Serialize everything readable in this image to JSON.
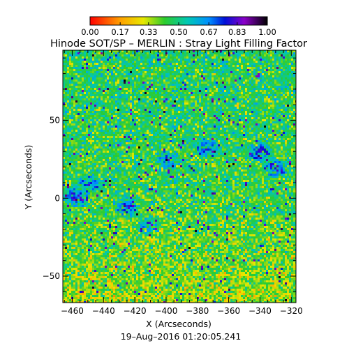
{
  "chart_data": {
    "type": "heatmap",
    "title": "Hinode SOT/SP – MERLIN : Stray Light Filling Factor",
    "xlabel": "X (Arcseconds)",
    "ylabel": "Y (Arcseconds)",
    "footer": "19–Aug–2016 01:20:05.241",
    "xlim": [
      -466,
      -317
    ],
    "ylim": [
      -67,
      95
    ],
    "x_ticks": [
      -460,
      -440,
      -420,
      -400,
      -380,
      -360,
      -340,
      -320
    ],
    "x_tick_labels": [
      "−460",
      "−440",
      "−420",
      "−400",
      "−380",
      "−360",
      "−340",
      "−320"
    ],
    "y_ticks": [
      -50,
      0,
      50
    ],
    "y_tick_labels": [
      "−50",
      "0",
      "50"
    ],
    "colorbar": {
      "range": [
        0.0,
        1.0
      ],
      "tick_values": [
        0.0,
        0.17,
        0.33,
        0.5,
        0.67,
        0.83,
        1.0
      ],
      "tick_labels": [
        "0.00",
        "0.17",
        "0.33",
        "0.50",
        "0.67",
        "0.83",
        "1.00"
      ],
      "colormap": "rainbow (red → yellow → green → cyan → blue → purple → black)"
    },
    "field_description": "fine-scale noisy filling-factor map; mostly 0.3–0.6 (green), red/orange speckles in lower half, blue (≈0.7–0.85) patches near y≈0 and y≈30",
    "blue_patches": [
      {
        "x": -458,
        "y": 1,
        "level": 0.78
      },
      {
        "x": -449,
        "y": 10,
        "level": 0.72
      },
      {
        "x": -425,
        "y": -5,
        "level": 0.75
      },
      {
        "x": -412,
        "y": -17,
        "level": 0.72
      },
      {
        "x": -375,
        "y": 33,
        "level": 0.74
      },
      {
        "x": -340,
        "y": 30,
        "level": 0.76
      },
      {
        "x": -330,
        "y": 20,
        "level": 0.72
      },
      {
        "x": -400,
        "y": 25,
        "level": 0.68
      }
    ]
  }
}
